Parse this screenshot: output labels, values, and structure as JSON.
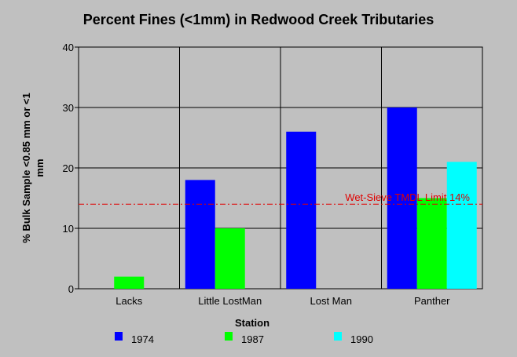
{
  "chart_data": {
    "type": "bar",
    "title": "Percent Fines (<1mm)  in Redwood Creek Tributaries",
    "xlabel": "Station",
    "ylabel_line1": "% Bulk Sample <0.85 mm or <1",
    "ylabel_line2": "mm",
    "categories": [
      "Lacks",
      "Little LostMan",
      "Lost Man",
      "Panther"
    ],
    "series": [
      {
        "name": "1974",
        "color": "#0000ff",
        "values": [
          null,
          18,
          26,
          30
        ]
      },
      {
        "name": "1987",
        "color": "#00ff00",
        "values": [
          2,
          10,
          null,
          15
        ]
      },
      {
        "name": "1990",
        "color": "#00ffff",
        "values": [
          null,
          null,
          null,
          21
        ]
      }
    ],
    "ylim": [
      0,
      40
    ],
    "yticks": [
      0,
      10,
      20,
      30,
      40
    ],
    "grid": true,
    "legend_position": "bottom",
    "reference_line": {
      "value": 14,
      "label": "Wet-Sieve TMDL Limit 14%",
      "color": "#e00000"
    }
  }
}
